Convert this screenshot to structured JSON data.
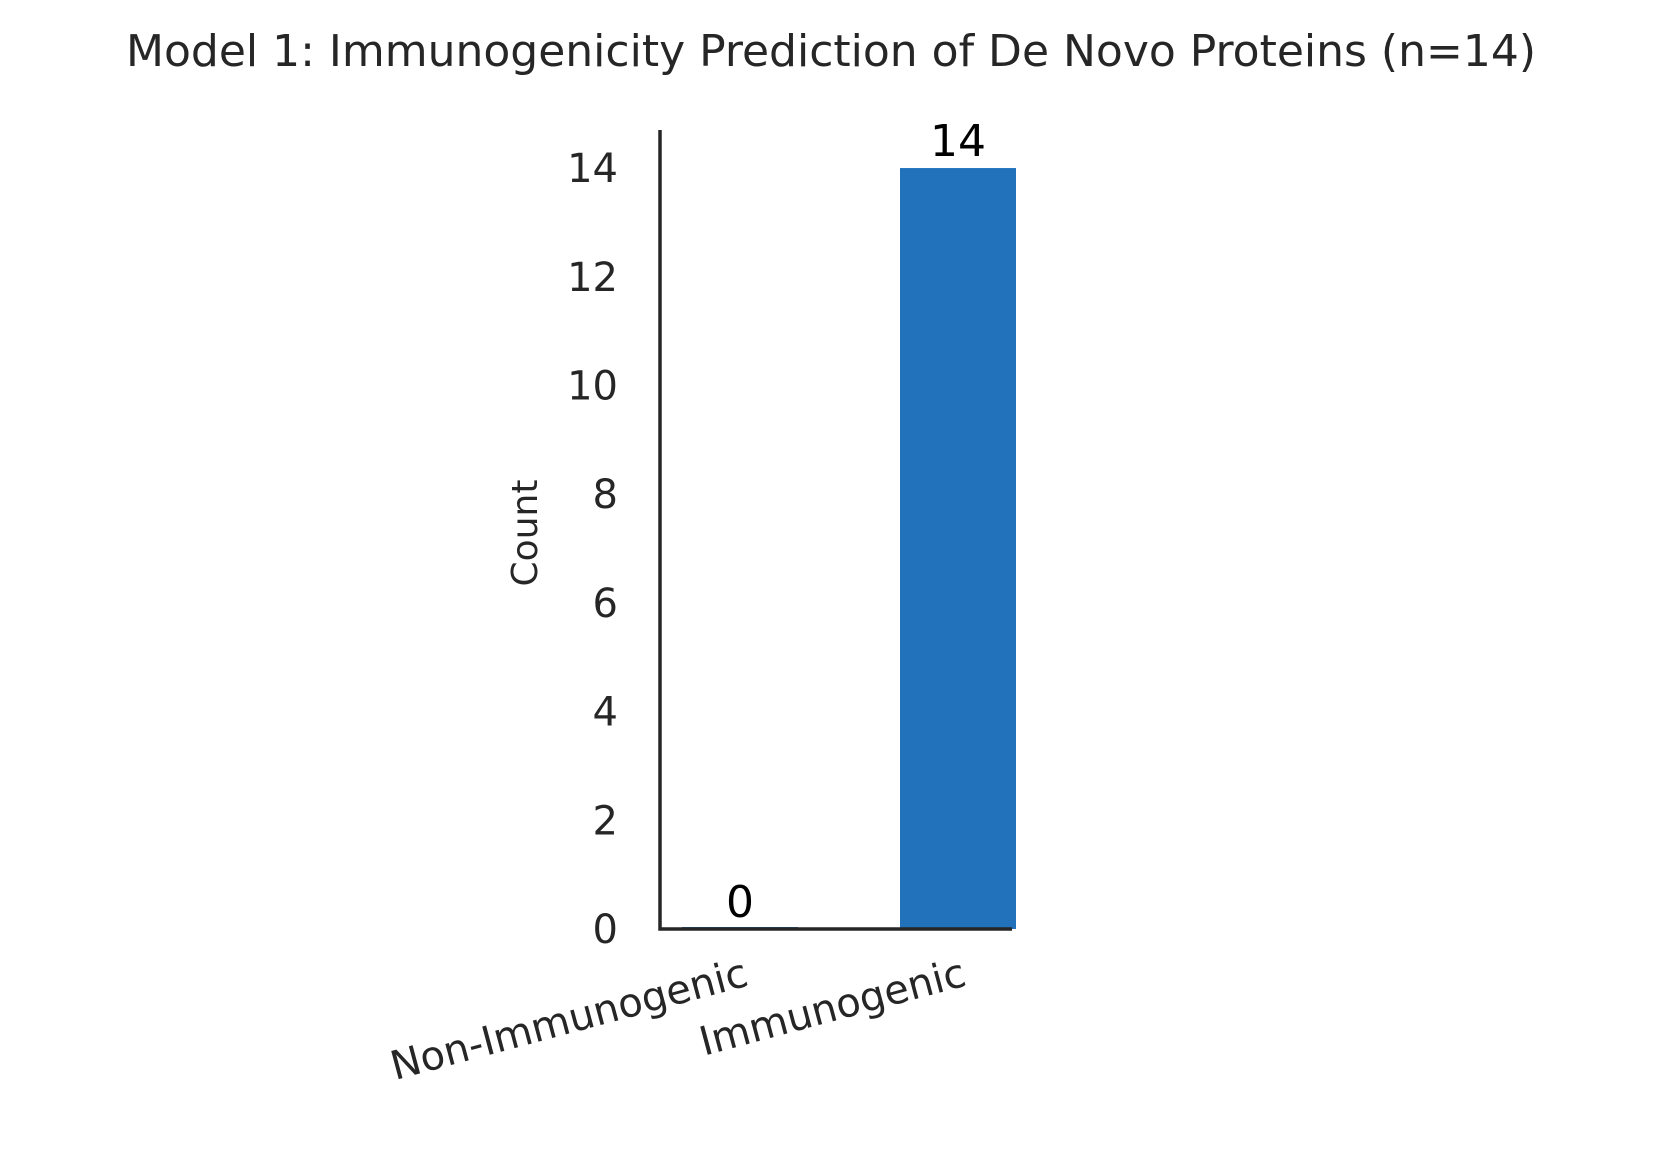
{
  "chart_data": {
    "type": "bar",
    "title": "Model 1: Immunogenicity Prediction of De Novo Proteins (n=14)",
    "xlabel": "",
    "ylabel": "Count",
    "categories": [
      "Non-Immunogenic",
      "Immunogenic"
    ],
    "values": [
      0,
      14
    ],
    "data_labels": [
      "0",
      "14"
    ],
    "yticks": [
      0,
      2,
      4,
      6,
      8,
      10,
      12,
      14
    ],
    "ytick_labels": [
      "0",
      "2",
      "4",
      "6",
      "8",
      "10",
      "12",
      "14"
    ],
    "ylim": [
      0,
      14.7
    ],
    "grid": false,
    "legend": "none",
    "colors": [
      "#2272bb",
      "#2272bb"
    ]
  }
}
